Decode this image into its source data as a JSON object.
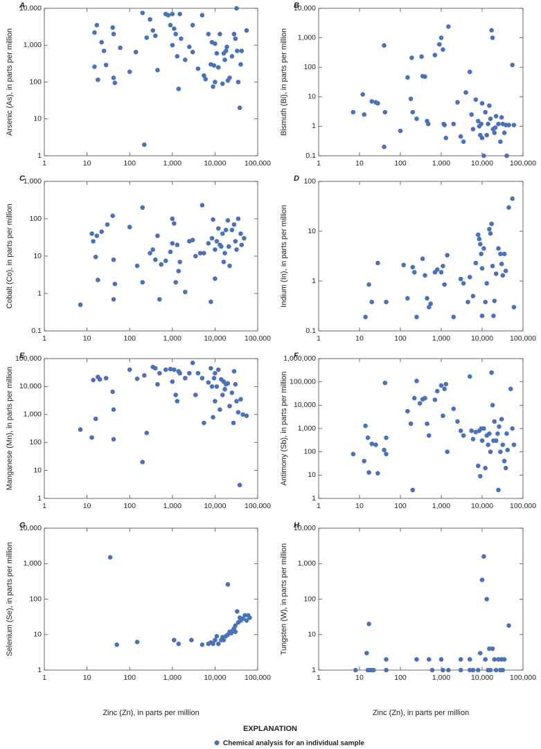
{
  "chart_data": [
    {
      "type": "scatter",
      "label": "A",
      "ylabel": "Arsenic (As), in parts per million",
      "color": "#4a72b8",
      "xlog": true,
      "ylog": true,
      "xlim": [
        1,
        100000
      ],
      "ylim": [
        1,
        10000
      ],
      "xticks": [
        1,
        10,
        100,
        {
          "value": 1000,
          "label": "1,000"
        },
        {
          "value": 10000,
          "label": "10,000"
        },
        {
          "value": 100000,
          "label": "100,000"
        }
      ],
      "yticks": [
        1,
        10,
        100,
        {
          "value": 1000,
          "label": "1,000"
        },
        {
          "value": 10000,
          "label": "10,000"
        }
      ],
      "x": [
        15,
        17,
        15,
        18,
        22,
        25,
        28,
        40,
        42,
        42,
        45,
        60,
        100,
        140,
        200,
        220,
        250,
        300,
        350,
        400,
        450,
        700,
        800,
        900,
        1000,
        1000,
        1100,
        1200,
        1300,
        1400,
        1500,
        1600,
        2000,
        2500,
        3000,
        3000,
        4000,
        5000,
        5500,
        6000,
        7000,
        8000,
        8500,
        9000,
        9500,
        10000,
        10000,
        11000,
        12000,
        13000,
        15000,
        16000,
        17000,
        18000,
        19000,
        20000,
        22000,
        25000,
        28000,
        30000,
        32000,
        33000,
        35000,
        38000,
        40000,
        42000,
        55000
      ],
      "y": [
        2200,
        3500,
        260,
        115,
        1200,
        700,
        290,
        3000,
        2000,
        130,
        95,
        850,
        190,
        650,
        7500,
        2,
        1600,
        5000,
        2500,
        1800,
        210,
        7000,
        6500,
        3500,
        7000,
        1000,
        2800,
        2000,
        500,
        65,
        7000,
        1500,
        400,
        900,
        3500,
        650,
        230,
        6500,
        150,
        120,
        2000,
        300,
        1200,
        75,
        280,
        1100,
        100,
        600,
        250,
        2000,
        90,
        600,
        400,
        700,
        900,
        110,
        130,
        500,
        2000,
        1500,
        10000,
        700,
        100,
        20,
        300,
        700,
        2500
      ]
    },
    {
      "type": "scatter",
      "label": "B",
      "ylabel": "Bismuth (Bi), in parts per million",
      "color": "#4a72b8",
      "xlog": true,
      "ylog": true,
      "xlim": [
        1,
        100000
      ],
      "ylim": [
        0.1,
        10000
      ],
      "xticks": [
        1,
        10,
        100,
        {
          "value": 1000,
          "label": "1,000"
        },
        {
          "value": 10000,
          "label": "10,000"
        },
        {
          "value": 100000,
          "label": "100,000"
        }
      ],
      "yticks": [
        0.1,
        1,
        10,
        100,
        {
          "value": 1000,
          "label": "1,000"
        },
        {
          "value": 10000,
          "label": "10,000"
        }
      ],
      "x": [
        7,
        12,
        13,
        20,
        25,
        28,
        40,
        40,
        42,
        100,
        150,
        180,
        190,
        200,
        250,
        330,
        350,
        400,
        450,
        480,
        700,
        900,
        1000,
        1100,
        1150,
        1200,
        1300,
        1500,
        2000,
        2500,
        3000,
        3500,
        4000,
        5000,
        5500,
        6000,
        7000,
        8000,
        8500,
        9000,
        9500,
        10000,
        10000,
        11000,
        12000,
        13000,
        14000,
        15000,
        16000,
        17000,
        18000,
        18500,
        20000,
        21000,
        22000,
        25000,
        28000,
        30000,
        32000,
        35000,
        38000,
        40000,
        45000,
        55000,
        60000
      ],
      "y": [
        3,
        12,
        2.5,
        7,
        6.5,
        6,
        0.2,
        550,
        3,
        0.7,
        45,
        8.5,
        210,
        3,
        1.8,
        230,
        50,
        48,
        1.5,
        1.2,
        260,
        600,
        1000,
        400,
        1.2,
        1.1,
        0.4,
        2400,
        1.2,
        6.5,
        0.45,
        0.3,
        14,
        70,
        2.5,
        0.8,
        8,
        1.5,
        1,
        0.5,
        1.2,
        0.4,
        6,
        0.1,
        3,
        0.5,
        1.2,
        5,
        1.8,
        1800,
        1000,
        0.8,
        0.6,
        0.9,
        2.2,
        1.2,
        0.3,
        2,
        1.2,
        0.6,
        1.1,
        0.1,
        1.1,
        120,
        1.1
      ]
    },
    {
      "type": "scatter",
      "label": "C",
      "ylabel": "Cobalt (Co), in parts per million",
      "color": "#4a72b8",
      "xlog": true,
      "ylog": true,
      "xlim": [
        1,
        100000
      ],
      "ylim": [
        0.1,
        1000
      ],
      "xticks": [
        1,
        10,
        100,
        {
          "value": 1000,
          "label": "1,000"
        },
        {
          "value": 10000,
          "label": "10,000"
        },
        {
          "value": 100000,
          "label": "100,000"
        }
      ],
      "yticks": [
        0.1,
        1,
        10,
        100,
        {
          "value": 1000,
          "label": "1,000"
        }
      ],
      "x": [
        7,
        13,
        14,
        16,
        17,
        18,
        22,
        30,
        40,
        42,
        42,
        45,
        100,
        150,
        200,
        200,
        300,
        350,
        400,
        450,
        500,
        550,
        700,
        900,
        1000,
        1000,
        1100,
        1200,
        1300,
        1400,
        1500,
        2000,
        2500,
        3000,
        3500,
        4500,
        5000,
        5500,
        7000,
        8000,
        8500,
        9000,
        10000,
        10000,
        11000,
        12000,
        13000,
        14000,
        15000,
        16000,
        17000,
        18000,
        20000,
        21000,
        22000,
        25000,
        28000,
        30000,
        32000,
        35000,
        40000,
        42000,
        48000
      ],
      "y": [
        0.5,
        40,
        25,
        9.5,
        35,
        2.3,
        45,
        70,
        120,
        8,
        0.7,
        1.8,
        60,
        5.5,
        200,
        2,
        12,
        15,
        8,
        35,
        0.7,
        6,
        7.5,
        13,
        22,
        100,
        75,
        2,
        20,
        4,
        7,
        1.1,
        25,
        27,
        10,
        12,
        230,
        12,
        22,
        0.6,
        30,
        95,
        2.5,
        15,
        25,
        55,
        20,
        18,
        40,
        7,
        12,
        50,
        90,
        18,
        5.5,
        50,
        70,
        25,
        15,
        100,
        40,
        20,
        30
      ]
    },
    {
      "type": "scatter",
      "label": "D",
      "ylabel": "Indium (In), in parts per million",
      "color": "#4a72b8",
      "xlog": true,
      "ylog": true,
      "xlim": [
        1,
        100000
      ],
      "ylim": [
        0.1,
        100
      ],
      "xticks": [
        1,
        10,
        100,
        {
          "value": 1000,
          "label": "1,000"
        },
        {
          "value": 10000,
          "label": "10,000"
        },
        {
          "value": 100000,
          "label": "100,000"
        }
      ],
      "yticks": [
        0.1,
        1,
        10,
        100
      ],
      "x": [
        14,
        17,
        20,
        28,
        45,
        120,
        150,
        200,
        220,
        250,
        350,
        400,
        450,
        500,
        550,
        700,
        800,
        1000,
        1100,
        1200,
        1400,
        2000,
        3000,
        3500,
        4500,
        5000,
        6000,
        7000,
        8000,
        8500,
        9000,
        9500,
        10000,
        10000,
        11000,
        12000,
        13000,
        15000,
        16000,
        17000,
        18000,
        19000,
        20000,
        22000,
        25000,
        28000,
        30000,
        32000,
        35000,
        38000,
        45000,
        55000,
        60000
      ],
      "y": [
        0.19,
        0.85,
        0.38,
        2.3,
        0.38,
        2.1,
        0.45,
        1.9,
        1.5,
        0.19,
        2.8,
        1.3,
        0.45,
        0.3,
        0.35,
        1.5,
        1.7,
        1.5,
        2,
        0.85,
        3.3,
        0.19,
        1.1,
        0.9,
        0.38,
        1.2,
        0.5,
        2.3,
        8.5,
        7,
        5.5,
        3.5,
        0.2,
        1.8,
        4.5,
        0.38,
        0.9,
        11,
        9,
        14,
        2,
        0.2,
        0.4,
        1.4,
        4.5,
        3.5,
        2.2,
        1.3,
        3.5,
        1.6,
        30,
        45,
        0.3
      ]
    },
    {
      "type": "scatter",
      "label": "E",
      "ylabel": "Manganese (Mn), in parts per million",
      "color": "#4a72b8",
      "xlog": true,
      "ylog": true,
      "xlim": [
        1,
        100000
      ],
      "ylim": [
        1,
        100000
      ],
      "xticks": [
        1,
        10,
        100,
        {
          "value": 1000,
          "label": "1,000"
        },
        {
          "value": 10000,
          "label": "10,000"
        },
        {
          "value": 100000,
          "label": "100,000"
        }
      ],
      "yticks": [
        1,
        10,
        100,
        {
          "value": 1000,
          "label": "1,000"
        },
        {
          "value": 10000,
          "label": "10,000"
        },
        {
          "value": 100000,
          "label": "100,000"
        }
      ],
      "x": [
        7,
        13,
        14,
        16,
        18,
        20,
        28,
        40,
        42,
        42,
        100,
        150,
        200,
        220,
        250,
        350,
        400,
        450,
        500,
        700,
        900,
        1000,
        1100,
        1200,
        1300,
        1400,
        1500,
        2000,
        2500,
        3000,
        3500,
        4000,
        5000,
        5500,
        7000,
        8000,
        8500,
        9000,
        9500,
        10000,
        10000,
        11000,
        12000,
        13000,
        14000,
        15000,
        16000,
        17000,
        18000,
        20000,
        22000,
        25000,
        27000,
        28000,
        30000,
        32000,
        35000,
        38000,
        40000,
        45000,
        55000
      ],
      "y": [
        290,
        150,
        17000,
        700,
        22000,
        18000,
        20000,
        6500,
        1500,
        130,
        40000,
        19000,
        20,
        25000,
        220,
        50000,
        45000,
        12000,
        30000,
        40000,
        42000,
        15000,
        40000,
        5000,
        3000,
        35000,
        30000,
        20000,
        30000,
        70000,
        5000,
        30000,
        20000,
        500,
        14000,
        45000,
        10000,
        800,
        20000,
        30000,
        3000,
        10000,
        40000,
        1500,
        18000,
        5000,
        15000,
        8000,
        12000,
        13000,
        2000,
        6000,
        500,
        35000,
        12000,
        3000,
        1200,
        3,
        3500,
        1000,
        900
      ]
    },
    {
      "type": "scatter",
      "label": "F",
      "ylabel": "Antimony (Sb), in parts per million",
      "color": "#4a72b8",
      "xlog": true,
      "ylog": true,
      "xlim": [
        1,
        100000
      ],
      "ylim": [
        1,
        1000000
      ],
      "xticks": [
        1,
        10,
        100,
        {
          "value": 1000,
          "label": "1,000"
        },
        {
          "value": 10000,
          "label": "10,000"
        },
        {
          "value": 100000,
          "label": "100,000"
        }
      ],
      "yticks": [
        1,
        10,
        100,
        {
          "value": 1000,
          "label": "1,000"
        },
        {
          "value": 10000,
          "label": "10,000"
        },
        {
          "value": 100000,
          "label": "100,000"
        },
        {
          "value": 1000000,
          "label": "1,000,000"
        }
      ],
      "x": [
        7,
        13,
        14,
        16,
        17,
        20,
        25,
        28,
        40,
        42,
        45,
        45,
        150,
        180,
        200,
        220,
        250,
        300,
        350,
        400,
        450,
        500,
        700,
        800,
        1000,
        1100,
        1200,
        1300,
        1400,
        2000,
        2500,
        3000,
        3500,
        5000,
        5500,
        6000,
        7000,
        8000,
        8500,
        9000,
        9500,
        10000,
        11000,
        12000,
        13000,
        14000,
        15000,
        16000,
        17000,
        18000,
        19000,
        20000,
        22000,
        24000,
        25000,
        26000,
        28000,
        30000,
        32000,
        35000,
        38000,
        40000,
        42000,
        50000,
        55000,
        60000
      ],
      "y": [
        80,
        40,
        1300,
        400,
        13,
        220,
        200,
        12,
        120,
        90000,
        80,
        400,
        5500,
        1600,
        2.3,
        20000,
        110000,
        12000,
        18000,
        20000,
        1600,
        500,
        17000,
        40000,
        70000,
        3500,
        50000,
        80000,
        100,
        7000,
        2000,
        800,
        500,
        170000,
        800,
        350,
        700,
        25,
        800,
        9,
        1000,
        300,
        1000,
        20,
        500,
        200,
        600,
        100,
        250000,
        10000,
        300,
        2000,
        300,
        600,
        2.3,
        1200,
        100,
        2500,
        200,
        40,
        20,
        600,
        120,
        50000,
        1000,
        200
      ]
    },
    {
      "type": "scatter",
      "label": "G",
      "ylabel": "Selenium (Se), in parts per million",
      "xlabel": "Zinc (Zn), in parts per million",
      "color": "#4a72b8",
      "xlog": true,
      "ylog": true,
      "xlim": [
        1,
        100000
      ],
      "ylim": [
        1,
        10000
      ],
      "xticks": [
        1,
        10,
        100,
        {
          "value": 1000,
          "label": "1,000"
        },
        {
          "value": 10000,
          "label": "10,000"
        },
        {
          "value": 100000,
          "label": "100,000"
        }
      ],
      "yticks": [
        1,
        10,
        100,
        {
          "value": 1000,
          "label": "1,000"
        },
        {
          "value": 10000,
          "label": "10,000"
        }
      ],
      "x": [
        35,
        50,
        150,
        1100,
        1400,
        2800,
        5000,
        7000,
        8000,
        9000,
        10000,
        11000,
        12000,
        14000,
        15000,
        16000,
        18000,
        20000,
        20000,
        22000,
        24000,
        26000,
        28000,
        30000,
        30000,
        33000,
        35000,
        38000,
        40000,
        45000,
        50000,
        55000,
        60000,
        65000
      ],
      "y": [
        1500,
        5.2,
        6.2,
        7,
        5.5,
        7,
        5.2,
        5.5,
        6,
        5.5,
        7,
        9,
        5.5,
        7,
        8.5,
        7,
        9,
        260,
        10,
        12,
        11,
        13,
        15,
        18,
        12,
        45,
        22,
        30,
        25,
        28,
        35,
        25,
        35,
        30
      ]
    },
    {
      "type": "scatter",
      "label": "H",
      "ylabel": "Tungsten (W), in parts per million",
      "xlabel": "Zinc (Zn), in parts per million",
      "color": "#4a72b8",
      "xlog": true,
      "ylog": true,
      "xlim": [
        1,
        100000
      ],
      "ylim": [
        1,
        10000
      ],
      "xticks": [
        1,
        10,
        100,
        {
          "value": 1000,
          "label": "1,000"
        },
        {
          "value": 10000,
          "label": "10,000"
        },
        {
          "value": 100000,
          "label": "100,000"
        }
      ],
      "yticks": [
        1,
        10,
        100,
        {
          "value": 1000,
          "label": "1,000"
        },
        {
          "value": 10000,
          "label": "10,000"
        }
      ],
      "x": [
        8,
        15,
        16,
        17,
        18,
        20,
        22,
        45,
        45,
        250,
        500,
        600,
        1000,
        1100,
        1500,
        3000,
        3000,
        5000,
        5000,
        6000,
        8000,
        9000,
        10000,
        11000,
        12000,
        13000,
        14000,
        15000,
        16000,
        18000,
        20000,
        22000,
        25000,
        28000,
        30000,
        32000,
        35000,
        45000
      ],
      "y": [
        1,
        3,
        1,
        20,
        1,
        1,
        1,
        2,
        1,
        2,
        2,
        1,
        2,
        1,
        1,
        2,
        1,
        2,
        1,
        1,
        1,
        3,
        350,
        1600,
        2,
        100,
        1,
        4,
        1,
        4,
        2,
        1,
        2,
        1,
        2,
        1,
        2,
        18
      ]
    }
  ],
  "legend": {
    "title": "EXPLANATION",
    "label": "Chemical analysis for an individual sample"
  }
}
